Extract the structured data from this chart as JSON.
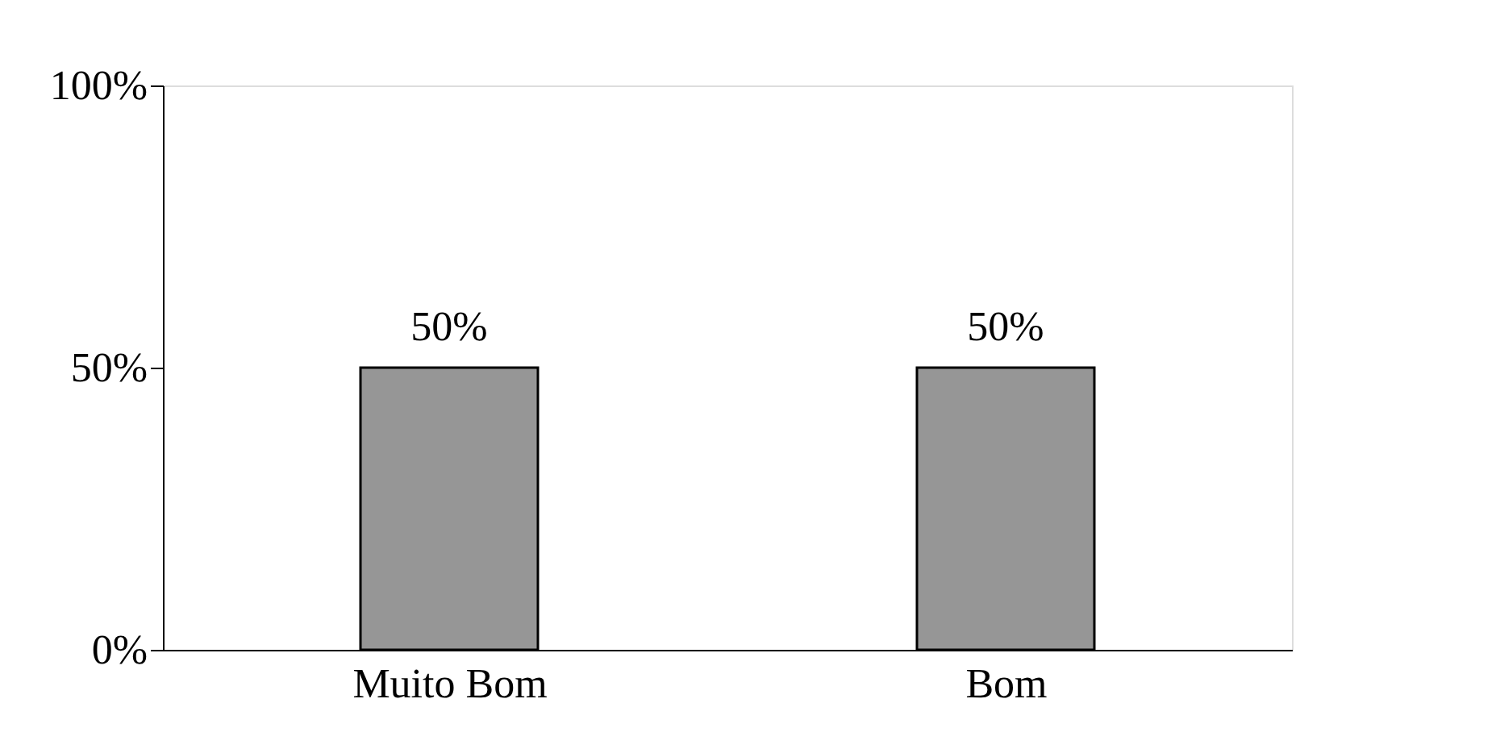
{
  "chart_data": {
    "type": "bar",
    "categories": [
      "Muito Bom",
      "Bom"
    ],
    "values": [
      50,
      50
    ],
    "color": "#969696",
    "ylim": [
      0,
      100
    ],
    "yticks": [
      {
        "value": 0,
        "label": "0%"
      },
      {
        "value": 50,
        "label": "50%"
      },
      {
        "value": 100,
        "label": "100%"
      }
    ],
    "value_labels": [
      "50%",
      "50%"
    ],
    "grid": false
  }
}
